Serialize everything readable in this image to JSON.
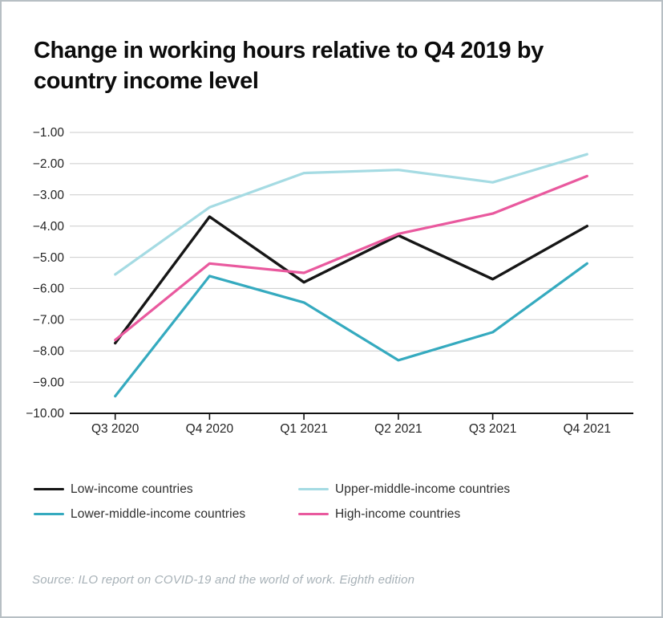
{
  "window": {
    "background": "#ffffff",
    "border_color": "#b7bfc4"
  },
  "header": {
    "title": "Change in working hours relative to Q4 2019 by country income level"
  },
  "chart_data": {
    "type": "line",
    "title": "Change in working hours relative to Q4 2019 by country income level",
    "categories": [
      "Q3 2020",
      "Q4 2020",
      "Q1 2021",
      "Q2 2021",
      "Q3 2021",
      "Q4 2021"
    ],
    "series": [
      {
        "name": "Low-income countries",
        "color": "#161616",
        "values": [
          -7.75,
          -3.7,
          -5.8,
          -4.3,
          -5.7,
          -4.0
        ]
      },
      {
        "name": "Lower-middle-income countries",
        "color": "#35aabf",
        "values": [
          -9.45,
          -5.6,
          -6.45,
          -8.3,
          -7.4,
          -5.2
        ]
      },
      {
        "name": "Upper-middle-income countries",
        "color": "#a5dbe3",
        "values": [
          -5.55,
          -3.4,
          -2.3,
          -2.2,
          -2.6,
          -1.7
        ]
      },
      {
        "name": "High-income countries",
        "color": "#e9599e",
        "values": [
          -7.65,
          -5.2,
          -5.5,
          -4.25,
          -3.6,
          -2.4
        ]
      }
    ],
    "xlabel": "",
    "ylabel": "",
    "ylim": [
      -10,
      -1
    ],
    "y_tick_values": [
      -1,
      -2,
      -3,
      -4,
      -5,
      -6,
      -7,
      -8,
      -9,
      -10
    ],
    "y_tick_labels": [
      "−1.00",
      "−2.00",
      "−3.00",
      "−4.00",
      "−5.00",
      "−6.00",
      "−7.00",
      "−8.00",
      "−9.00",
      "−10.00"
    ],
    "grid": "horizontal",
    "gridline_color": "#cbcbcb",
    "axis_color": "#111111",
    "tick_label_color": "#242424",
    "legend_position": "bottom"
  },
  "footer": {
    "source": "Source: ILO report on COVID-19 and the world of work. Eighth edition"
  }
}
